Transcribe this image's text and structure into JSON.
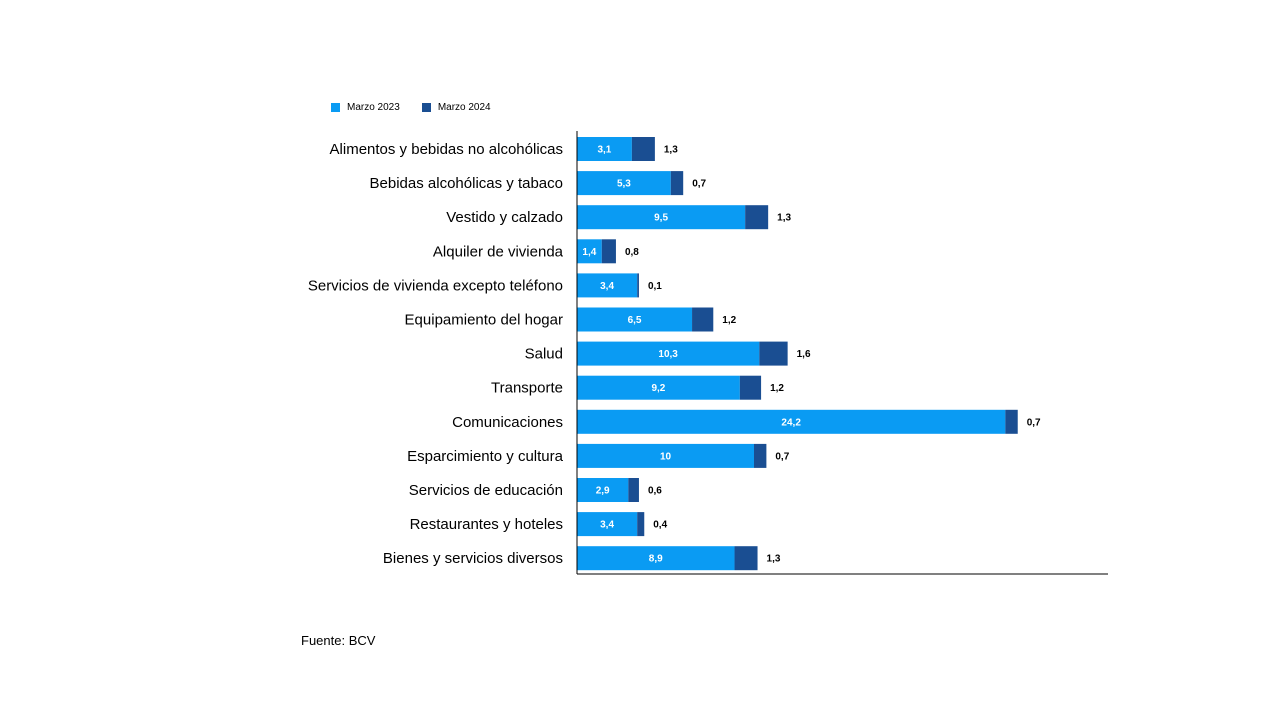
{
  "colors": {
    "series1": "#0a9bf3",
    "series2": "#1a4e92",
    "axis": "#000000"
  },
  "source": "Fuente: BCV",
  "chart_data": {
    "type": "bar",
    "orientation": "horizontal",
    "stacked": true,
    "categories": [
      "Alimentos y bebidas no alcohólicas",
      "Bebidas alcohólicas y tabaco",
      "Vestido y calzado",
      "Alquiler de vivienda",
      "Servicios de vivienda excepto teléfono",
      "Equipamiento del hogar",
      "Salud",
      "Transporte",
      "Comunicaciones",
      "Esparcimiento y cultura",
      "Servicios de educación",
      "Restaurantes y hoteles",
      "Bienes y servicios diversos"
    ],
    "series": [
      {
        "name": "Marzo 2023",
        "values": [
          3.1,
          5.3,
          9.5,
          1.4,
          3.4,
          6.5,
          10.3,
          9.2,
          24.2,
          10,
          2.9,
          3.4,
          8.9
        ],
        "labels": [
          "3,1",
          "5,3",
          "9,5",
          "1,4",
          "3,4",
          "6,5",
          "10,3",
          "9,2",
          "24,2",
          "10",
          "2,9",
          "3,4",
          "8,9"
        ]
      },
      {
        "name": "Marzo 2024",
        "values": [
          1.3,
          0.7,
          1.3,
          0.8,
          0.1,
          1.2,
          1.6,
          1.2,
          0.7,
          0.7,
          0.6,
          0.4,
          1.3
        ],
        "labels": [
          "1,3",
          "0,7",
          "1,3",
          "0,8",
          "0,1",
          "1,2",
          "1,6",
          "1,2",
          "0,7",
          "0,7",
          "0,6",
          "0,4",
          "1,3"
        ]
      }
    ],
    "xlim": [
      0,
      30
    ],
    "legend_position": "top-left",
    "grid": false,
    "title": "",
    "xlabel": "",
    "ylabel": ""
  }
}
